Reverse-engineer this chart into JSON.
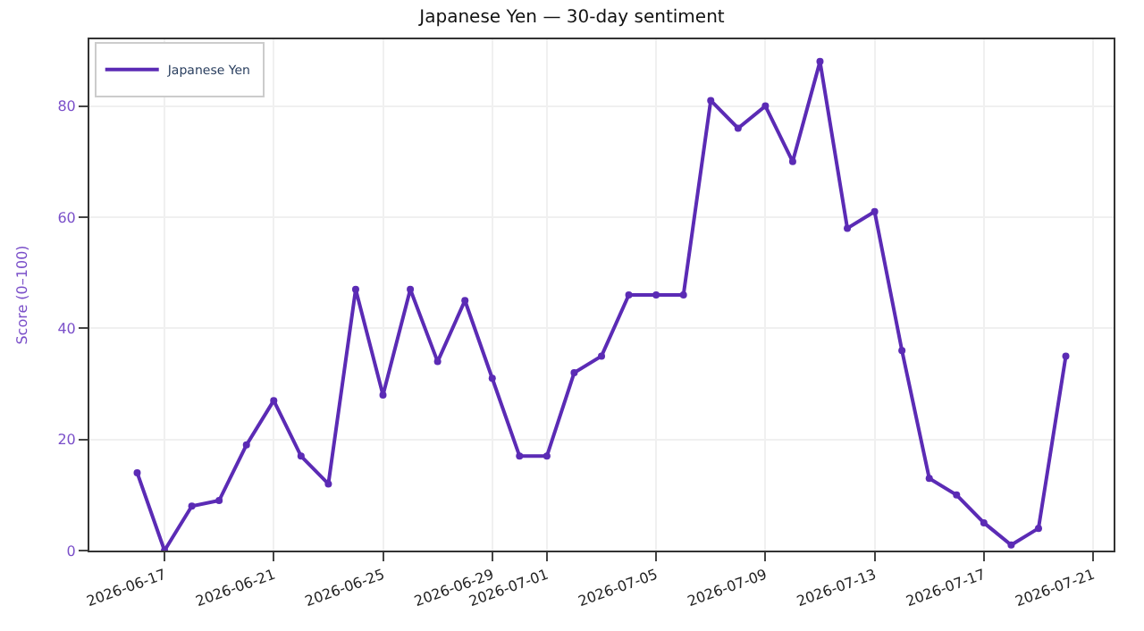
{
  "chart_data": {
    "type": "line",
    "title": "Japanese Yen — 30-day sentiment",
    "ylabel": "Score (0–100)",
    "x": [
      "2026-06-16",
      "2026-06-17",
      "2026-06-18",
      "2026-06-19",
      "2026-06-20",
      "2026-06-21",
      "2026-06-22",
      "2026-06-23",
      "2026-06-24",
      "2026-06-25",
      "2026-06-26",
      "2026-06-27",
      "2026-06-28",
      "2026-06-29",
      "2026-06-30",
      "2026-07-01",
      "2026-07-02",
      "2026-07-03",
      "2026-07-04",
      "2026-07-05",
      "2026-07-06",
      "2026-07-07",
      "2026-07-08",
      "2026-07-09",
      "2026-07-10",
      "2026-07-11",
      "2026-07-12",
      "2026-07-13",
      "2026-07-14",
      "2026-07-15",
      "2026-07-16",
      "2026-07-17",
      "2026-07-18",
      "2026-07-19",
      "2026-07-20"
    ],
    "series": [
      {
        "name": "Japanese Yen",
        "color": "#5b2bb5",
        "values": [
          14,
          0,
          8,
          9,
          19,
          27,
          17,
          12,
          47,
          28,
          47,
          34,
          45,
          31,
          17,
          17,
          32,
          35,
          46,
          46,
          46,
          81,
          76,
          80,
          70,
          88,
          58,
          61,
          36,
          13,
          10,
          5,
          1,
          4,
          35
        ]
      }
    ],
    "xlim": [
      "2026-06-14T06:00",
      "2026-07-21T18:00"
    ],
    "xticks": [
      "2026-06-17",
      "2026-06-21",
      "2026-06-25",
      "2026-06-29",
      "2026-07-01",
      "2026-07-05",
      "2026-07-09",
      "2026-07-13",
      "2026-07-17",
      "2026-07-21"
    ],
    "ylim": [
      0,
      92
    ],
    "yticks": [
      0,
      20,
      40,
      60,
      80
    ],
    "grid": true,
    "legend": "top left",
    "marker": "circle",
    "line_style": "solid"
  }
}
